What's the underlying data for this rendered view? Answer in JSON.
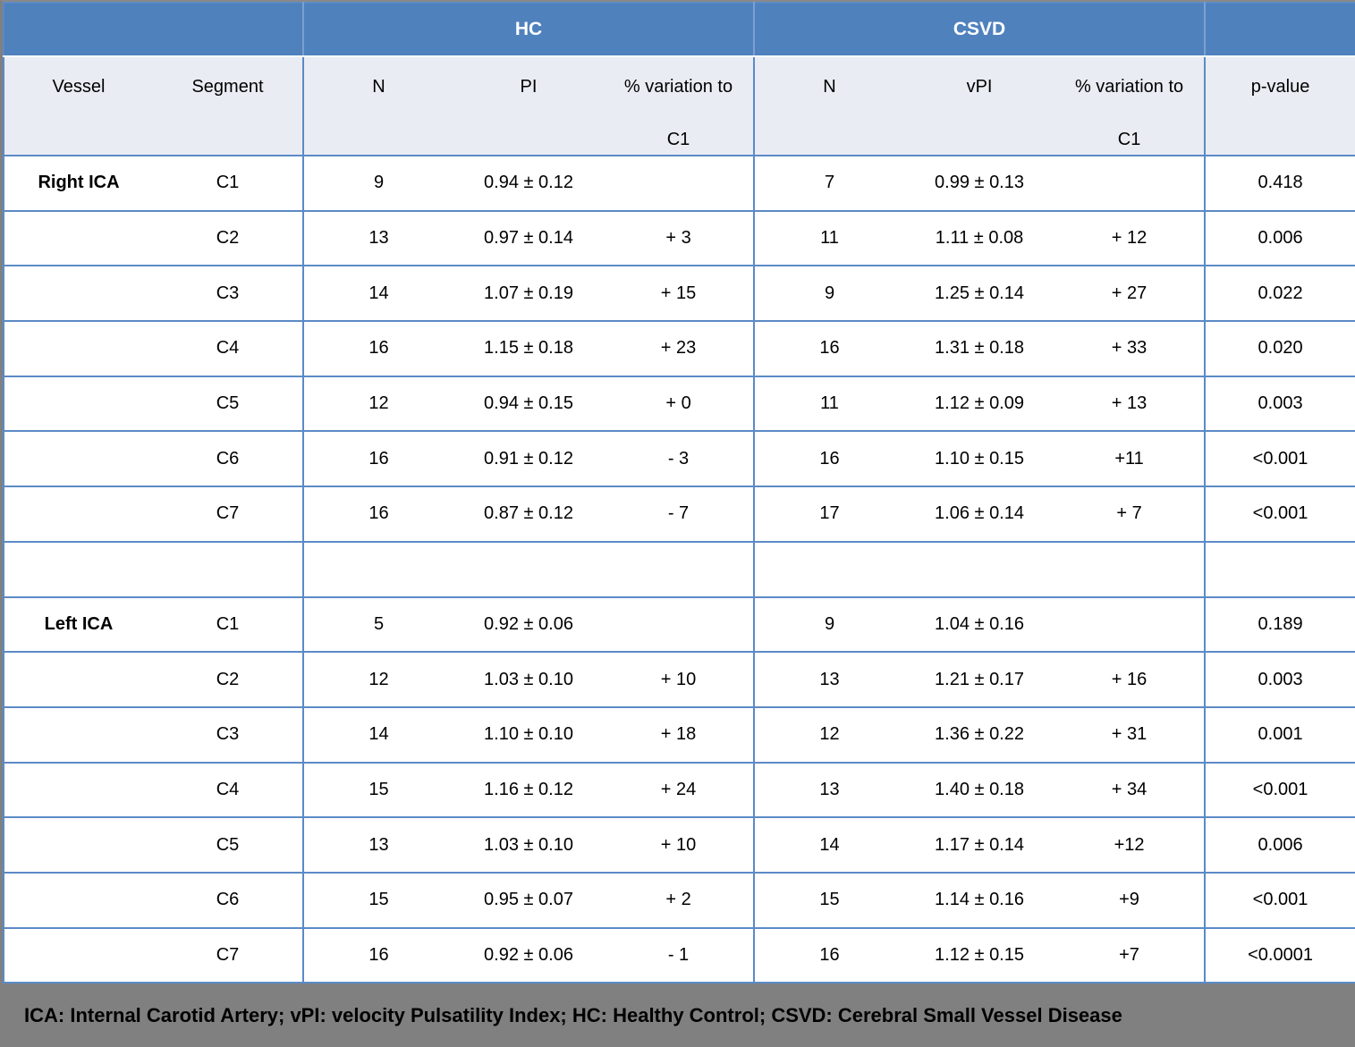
{
  "table": {
    "group_headers": {
      "hc": "HC",
      "csvd": "CSVD"
    },
    "col_headers": {
      "vessel": "Vessel",
      "segment": "Segment",
      "hc_n": "N",
      "hc_pi": "PI",
      "hc_variation_line1": "% variation to",
      "hc_variation_line2": "C1",
      "csvd_n": "N",
      "csvd_pi": "vPI",
      "csvd_variation_line1": "% variation to",
      "csvd_variation_line2": "C1",
      "p_value": "p-value"
    },
    "rows": [
      {
        "vessel": "Right ICA",
        "segment": "C1",
        "hc_n": "9",
        "hc_pi": "0.94 ± 0.12",
        "hc_var": "",
        "csvd_n": "7",
        "csvd_pi": "0.99 ± 0.13",
        "csvd_var": "",
        "p": "0.418"
      },
      {
        "vessel": "",
        "segment": "C2",
        "hc_n": "13",
        "hc_pi": "0.97 ± 0.14",
        "hc_var": "+ 3",
        "csvd_n": "11",
        "csvd_pi": "1.11 ± 0.08",
        "csvd_var": "+ 12",
        "p": "0.006"
      },
      {
        "vessel": "",
        "segment": "C3",
        "hc_n": "14",
        "hc_pi": "1.07 ± 0.19",
        "hc_var": "+ 15",
        "csvd_n": "9",
        "csvd_pi": "1.25 ± 0.14",
        "csvd_var": "+ 27",
        "p": "0.022"
      },
      {
        "vessel": "",
        "segment": "C4",
        "hc_n": "16",
        "hc_pi": "1.15 ± 0.18",
        "hc_var": "+ 23",
        "csvd_n": "16",
        "csvd_pi": "1.31 ± 0.18",
        "csvd_var": "+ 33",
        "p": "0.020"
      },
      {
        "vessel": "",
        "segment": "C5",
        "hc_n": "12",
        "hc_pi": "0.94 ± 0.15",
        "hc_var": "+ 0",
        "csvd_n": "11",
        "csvd_pi": "1.12 ± 0.09",
        "csvd_var": "+ 13",
        "p": "0.003"
      },
      {
        "vessel": "",
        "segment": "C6",
        "hc_n": "16",
        "hc_pi": "0.91 ± 0.12",
        "hc_var": "- 3",
        "csvd_n": "16",
        "csvd_pi": "1.10 ± 0.15",
        "csvd_var": "+11",
        "p": "<0.001"
      },
      {
        "vessel": "",
        "segment": "C7",
        "hc_n": "16",
        "hc_pi": "0.87 ± 0.12",
        "hc_var": "- 7",
        "csvd_n": "17",
        "csvd_pi": "1.06 ± 0.14",
        "csvd_var": "+ 7",
        "p": "<0.001"
      },
      {
        "vessel": "",
        "segment": "",
        "hc_n": "",
        "hc_pi": "",
        "hc_var": "",
        "csvd_n": "",
        "csvd_pi": "",
        "csvd_var": "",
        "p": ""
      },
      {
        "vessel": "Left ICA",
        "segment": "C1",
        "hc_n": "5",
        "hc_pi": "0.92 ± 0.06",
        "hc_var": "",
        "csvd_n": "9",
        "csvd_pi": "1.04 ± 0.16",
        "csvd_var": "",
        "p": "0.189"
      },
      {
        "vessel": "",
        "segment": "C2",
        "hc_n": "12",
        "hc_pi": "1.03 ± 0.10",
        "hc_var": "+ 10",
        "csvd_n": "13",
        "csvd_pi": "1.21 ± 0.17",
        "csvd_var": "+ 16",
        "p": "0.003"
      },
      {
        "vessel": "",
        "segment": "C3",
        "hc_n": "14",
        "hc_pi": "1.10 ± 0.10",
        "hc_var": "+ 18",
        "csvd_n": "12",
        "csvd_pi": "1.36 ± 0.22",
        "csvd_var": "+ 31",
        "p": "0.001"
      },
      {
        "vessel": "",
        "segment": "C4",
        "hc_n": "15",
        "hc_pi": "1.16 ± 0.12",
        "hc_var": "+ 24",
        "csvd_n": "13",
        "csvd_pi": "1.40 ± 0.18",
        "csvd_var": "+ 34",
        "p": "<0.001"
      },
      {
        "vessel": "",
        "segment": "C5",
        "hc_n": "13",
        "hc_pi": "1.03 ± 0.10",
        "hc_var": "+ 10",
        "csvd_n": "14",
        "csvd_pi": "1.17 ± 0.14",
        "csvd_var": "+12",
        "p": "0.006"
      },
      {
        "vessel": "",
        "segment": "C6",
        "hc_n": "15",
        "hc_pi": "0.95 ± 0.07",
        "hc_var": "+ 2",
        "csvd_n": "15",
        "csvd_pi": "1.14 ± 0.16",
        "csvd_var": "+9",
        "p": "<0.001"
      },
      {
        "vessel": "",
        "segment": "C7",
        "hc_n": "16",
        "hc_pi": "0.92 ± 0.06",
        "hc_var": "- 1",
        "csvd_n": "16",
        "csvd_pi": "1.12 ± 0.15",
        "csvd_var": "+7",
        "p": "<0.0001"
      }
    ]
  },
  "footnote": {
    "text": "ICA: Internal Carotid Artery; vPI: velocity Pulsatility Index; HC: Healthy Control; CSVD: Cerebral Small Vessel Disease"
  },
  "colors": {
    "header_blue": "#4f81bd",
    "subheader_bg": "#e9ecf3",
    "border_blue": "#5b8ac6",
    "footer_gray": "#808080"
  }
}
